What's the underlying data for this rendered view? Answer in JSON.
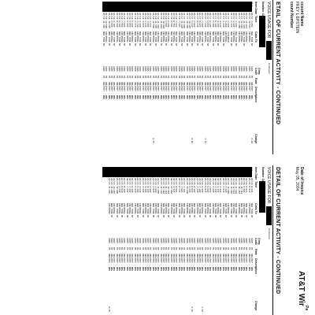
{
  "header": {
    "account_name_label": "ccount Name",
    "account_name_value": "FREY L EPSTEIN",
    "account_number_label": "count Number",
    "invoice_date_label": "Date of Invoice",
    "invoice_date_value": "May 05, 2004",
    "brand": "AT&T Wir",
    "page_label": "Pa"
  },
  "sections": [
    {
      "title": "ETAIL OF CURRENT ACTIVITY - CONTINUED",
      "subtitle": "VOICE USAGE FOR",
      "continued": "Continued",
      "columns": [
        "Number Called",
        "Item Date",
        "Time",
        "Calls To",
        "Chrg Code",
        "Rate",
        "Description",
        "Charge"
      ]
    },
    {
      "title": "DETAIL OF CURRENT ACTIVITY - CONTINUED",
      "subtitle": "VOICE USAGE FOR",
      "continued": "Continued",
      "columns": [
        "Number Called",
        "Item Date",
        "Time",
        "Calls To",
        "Chrg Code",
        "Rate",
        "Description",
        "Charge"
      ]
    }
  ],
  "rows_left": [
    [
      "05/1",
      "04/17 9:25A",
      "NEW YORK NY",
      "1085",
      "PK",
      "UNLIMIT - NNN",
      "2.00"
    ],
    [
      "05/1",
      "04/17 10:51A",
      "INCOMING",
      "1085",
      "PK",
      "UNLIMIT - NNN",
      ""
    ],
    [
      "05/1",
      "04/17 11:07A",
      "INCOMING",
      "1085",
      "PK",
      "UNLIMIT - NNN",
      ""
    ],
    [
      "05/1",
      "04/17 11:42A",
      "NEW YORK NY",
      "1085",
      "PK",
      "UNLIMIT - NNN",
      ""
    ],
    [
      "05/1",
      "04/17 12:02P",
      "INCOMING",
      "1085",
      "PK",
      "UNLIMIT - NNN",
      ""
    ],
    [
      "05/1",
      "04/17 12:45P",
      "INCOMING",
      "1085",
      "PK",
      "UNLIMIT - NNN",
      ""
    ],
    [
      "05/1",
      "04/17 1:03P",
      "NEW YORK NY",
      "1085",
      "PK",
      "UNLIMIT - NNN",
      ""
    ],
    [
      "05/1",
      "04/17 1:30P",
      "INCOMING",
      "1085",
      "PK",
      "UNLIMIT - NNN",
      ""
    ],
    [
      "05/1",
      "04/17 2:12P",
      "NEW YORK NY",
      "1085",
      "PK",
      "UNLIMIT - NNN",
      ""
    ],
    [
      "05/1",
      "04/17 2:40P",
      "VOICEMAIL",
      "1085",
      "PK",
      "UNLIMIT - NNN",
      ""
    ],
    [
      "05/1",
      "04/17 3:05P",
      "INCOMING",
      "1085",
      "PK",
      "UNLIMIT - NNN",
      ""
    ],
    [
      "05/1",
      "04/17 3:33P",
      "NEW YORK NY",
      "1085",
      "PK",
      "UNLIMIT - NNN",
      ""
    ],
    [
      "05/1",
      "04/17 4:01P",
      "INCOMING",
      "1085",
      "PK",
      "UNLIMIT - NNN",
      ""
    ],
    [
      "05/1",
      "04/17 4:26P",
      "NEW YORK NY",
      "1085",
      "PK",
      "UNLIMIT - NNN",
      ""
    ],
    [
      "05/1",
      "04/17 5:10P",
      "INCOMING",
      "1085",
      "PK",
      "UNLIMIT - NNN",
      ""
    ],
    [
      "05/1",
      "04/17 5:48P",
      "NEW YORK NY",
      "1085",
      "PK",
      "UNLIMIT - NNN",
      ""
    ],
    [
      "05/1",
      "04/17 6:20P",
      "INCOMING",
      "1085",
      "PK",
      "UNLIMIT - NNN",
      ""
    ],
    [
      "05/1",
      "04/17 6:55P",
      "NEW YORK NY",
      "1085",
      "PK",
      "UNLIMIT - NNN",
      ""
    ],
    [
      "05/1",
      "04/17 7:14P",
      "INCOMING",
      "1085",
      "PK",
      "UNLIMIT - NNN",
      "1.25"
    ],
    [
      "05/1",
      "04/17 7:40P",
      "NEW YORK NY",
      "1085",
      "PK",
      "UNLIMIT - NNN",
      ""
    ],
    [
      "05/1",
      "04/17 8:02P",
      "INCOMING",
      "1085",
      "PK",
      "UNLIMIT - NNN",
      ""
    ],
    [
      "05/1",
      "04/17 8:31P",
      "NEW YORK NY",
      "1085",
      "PK",
      "UNLIMIT - NNN",
      ""
    ],
    [
      "05/1",
      "04/17 9:09P",
      "INCOMING",
      "1085",
      "PK",
      "UNLIMIT - NNN",
      ""
    ],
    [
      "05/1",
      "04/17 9:44P",
      "NEW YORK NY",
      "1085",
      "PK",
      "UNLIMIT - NNN",
      "0.25"
    ],
    [
      "05/1",
      "04/17 10:12P",
      "INCOMING",
      "1085",
      "PK",
      "UNLIMIT - NNN",
      ""
    ],
    [
      "05/1",
      "04/17 10:40P",
      "NEW YORK NY",
      "1085",
      "PK",
      "UNLIMIT - NNN",
      ""
    ],
    [
      "05/1",
      "04/17 11:05P",
      "INCOMING",
      "1085",
      "PK",
      "UNLIMIT - NNN",
      ""
    ],
    [
      "05/1",
      "04/17 11:30P",
      "NEW YORK NY",
      "1085",
      "PK",
      "UNLIMIT - NNN",
      ""
    ],
    [
      "05/1",
      "04/18 7:10A",
      "INCOMING",
      "1085",
      "PK",
      "UNLIMIT - NNN",
      ""
    ],
    [
      "05/1",
      "04/18 7:42A",
      "NEW YORK NY",
      "1085",
      "PK",
      "UNLIMIT - NNN",
      ""
    ],
    [
      "05/1",
      "04/18 8:15A",
      "INCOMING",
      "1085",
      "PK",
      "UNLIMIT - NNN",
      ""
    ],
    [
      "05/1",
      "04/18 8:50A",
      "NEW YORK NY",
      "1085",
      "PK",
      "UNLIMIT - NNN",
      ""
    ],
    [
      "05/1",
      "04/18 9:20A",
      "INCOMING",
      "1085",
      "PK",
      "UNLIMIT - NNN",
      ""
    ],
    [
      "05/1",
      "04/18 9:58A",
      "NEW YORK NY",
      "1085",
      "PK",
      "UNLIMIT - NNN",
      ""
    ],
    [
      "05/1",
      "04/18 10:30A",
      "INCOMING",
      "1085",
      "PK",
      "UNLIMIT - NNN",
      ""
    ],
    [
      "05/1",
      "04/18 11:02A",
      "NEW YORK NY",
      "1085",
      "PK",
      "UNLIMIT - NNN",
      ""
    ],
    [
      "05/1",
      "04/18 11:40A",
      "INCOMING",
      "1085",
      "PK",
      "UNLIMIT - NNN",
      ""
    ],
    [
      "05/1",
      "04/18 12:15P",
      "NEW YORK NY",
      "1085",
      "PK",
      "UNLIMIT - NNN",
      ""
    ],
    [
      "05/1",
      "04/18 12:50P",
      "INCOMING",
      "1085",
      "PK",
      "UNLIMIT - NNN",
      "0.75"
    ],
    [
      "05/1",
      "04/18 1:22P",
      "NEW YORK NY",
      "1085",
      "PK",
      "UNLIMIT - NNN",
      ""
    ],
    [
      "05/1",
      "04/18 1:58P",
      "INCOMING",
      "1085",
      "PK",
      "UNLIMIT - NNN",
      ""
    ],
    [
      "05/1",
      "04/18 2:31P",
      "NEW YORK NY",
      "1085",
      "PK",
      "UNLIMIT - NNN",
      ""
    ],
    [
      "05/1",
      "04/18 3:02P",
      "INCOMING",
      "1085",
      "PK",
      "UNLIMIT - NNN",
      ""
    ],
    [
      "05/1",
      "04/18 3:40P",
      "NEW YORK NY",
      "1085",
      "PK",
      "UNLIMIT - NNN",
      ""
    ],
    [
      "05/1",
      "04/18 4:11P",
      "INCOMING",
      "1085",
      "PK",
      "UNLIMIT - NNN",
      ""
    ],
    [
      "05/1",
      "04/18 4:47P",
      "NEW YORK NY",
      "1085",
      "PK",
      "UNLIMIT - NNN",
      ""
    ],
    [
      "05/1",
      "04/18 5:20P",
      "INCOMING",
      "1085",
      "PK",
      "UNLIMIT - NNN",
      ""
    ],
    [
      "05/1",
      "04/18 5:55P",
      "NEW YORK NY",
      "1085",
      "PK",
      "UNLIMIT - NNN",
      ""
    ],
    [
      "05/1",
      "04/18 6:28P",
      "INCOMING",
      "1085",
      "PK",
      "UNLIMIT - NNN",
      ""
    ],
    [
      "05/1",
      "04/18 7:02P",
      "NEW YORK NY",
      "1085",
      "PK",
      "UNLIMIT - NNN",
      ""
    ],
    [
      "05/1",
      "04/18 7:35P",
      "INCOMING",
      "1085",
      "PK",
      "UNLIMIT - NNN",
      ""
    ],
    [
      "05/1",
      "04/18 8:10P",
      "NEW YORK NY",
      "1085",
      "PK",
      "UNLIMIT - NNN",
      ""
    ],
    [
      "05/1",
      "04/18 8:44P",
      "INCOMING",
      "1085",
      "PK",
      "UNLIMIT - NNN",
      ""
    ],
    [
      "05/1",
      "04/18 9:18P",
      "NEW YORK NY",
      "1085",
      "PK",
      "UNLIMIT - NNN",
      ""
    ],
    [
      "05/1",
      "04/18 9:50P",
      "INCOMING",
      "1085",
      "PK",
      "UNLIMIT - NNN",
      ""
    ],
    [
      "05/1",
      "04/18 10:22P",
      "NEW YORK NY",
      "1085",
      "PK",
      "UNLIMIT - NNN",
      ""
    ],
    [
      "05/1",
      "04/18 10:58P",
      "INCOMING",
      "1085",
      "PK",
      "UNLIMIT - NNN",
      ""
    ],
    [
      "05/1",
      "04/18 11:31P",
      "NEW YORK NY",
      "1085",
      "PK",
      "UNLIMIT - NNN",
      ""
    ]
  ],
  "rows_right": [
    [
      "4/2",
      "04/28 8:04A",
      "NEW YORK NY",
      "1085",
      "PK",
      "UNLIMIT - NNN",
      ""
    ],
    [
      "4/2",
      "04/28 8:31A",
      "INCOMING",
      "1085",
      "PK",
      "UNLIMIT - NNN",
      ""
    ],
    [
      "4/2",
      "04/28 9:02A",
      "NEW YORK NY",
      "1085",
      "PK",
      "UNLIMIT - NNN",
      ""
    ],
    [
      "4/2",
      "04/28 9:40A",
      "INCOMING",
      "1085",
      "PK",
      "UNLIMIT - NNN",
      ""
    ],
    [
      "4/2",
      "04/28 10:11A",
      "NEW YORK NY",
      "1085",
      "PK",
      "UNLIMIT - NNN",
      ""
    ],
    [
      "4/2",
      "04/28 10:45A",
      "INCOMING",
      "1085",
      "PK",
      "UNLIMIT - NNN",
      ""
    ],
    [
      "4/2",
      "04/28 11:20A",
      "NEW YORK NY",
      "1085",
      "PK",
      "UNLIMIT - NNN",
      ""
    ],
    [
      "4/2",
      "04/28 11:52A",
      "INCOMING",
      "1085",
      "PK",
      "UNLIMIT - NNN",
      ""
    ],
    [
      "4/2",
      "04/28 12:25P",
      "NEW YORK NY",
      "1085",
      "PK",
      "UNLIMIT - NNN",
      ""
    ],
    [
      "4/2",
      "04/28 12:58P",
      "INCOMING",
      "1085",
      "PK",
      "UNLIMIT - NNN",
      ""
    ],
    [
      "4/2",
      "04/28 1:30P",
      "NEW YORK NY",
      "1085",
      "PK",
      "UNLIMIT - NNN",
      ""
    ],
    [
      "4/2",
      "04/28 2:04P",
      "INCOMING",
      "1085",
      "PK",
      "UNLIMIT - NNN",
      ""
    ],
    [
      "4/2",
      "04/28 2:40P",
      "NEW YORK NY",
      "1085",
      "PK",
      "UNLIMIT - NNN",
      ""
    ],
    [
      "4/2",
      "04/28 3:12P",
      "INCOMING",
      "1085",
      "PK",
      "UNLIMIT - NNN",
      ""
    ],
    [
      "4/2",
      "04/28 3:46P",
      "NEW YORK NY",
      "1085",
      "PK",
      "UNLIMIT - NNN",
      ""
    ],
    [
      "4/2",
      "04/28 4:20P",
      "INCOMING",
      "1085",
      "PK",
      "UNLIMIT - NNN",
      ""
    ],
    [
      "4/2",
      "04/28 4:55P",
      "NEW YORK NY",
      "1085",
      "PK",
      "UNLIMIT - NNN",
      ""
    ],
    [
      "4/2",
      "04/28 5:28P",
      "INCOMING",
      "1085",
      "PK",
      "UNLIMIT - NNN",
      ""
    ],
    [
      "4/2",
      "04/28 6:02P",
      "NEW YORK NY",
      "1085",
      "PK",
      "UNLIMIT - NNN",
      ""
    ],
    [
      "4/2",
      "04/28 6:36P",
      "INCOMING",
      "1085",
      "PK",
      "UNLIMIT - NNN",
      "1.25"
    ],
    [
      "4/2",
      "04/28 7:10P",
      "NEW YORK NY",
      "1085",
      "PK",
      "UNLIMIT - NNN",
      ""
    ],
    [
      "4/2",
      "04/28 7:44P",
      "INCOMING",
      "1085",
      "PK",
      "UNLIMIT - NNN",
      ""
    ],
    [
      "4/2",
      "04/28 8:18P",
      "NEW YORK NY",
      "1085",
      "PK",
      "UNLIMIT - NNN",
      ""
    ],
    [
      "4/2",
      "04/28 8:52P",
      "INCOMING",
      "1085",
      "PK",
      "UNLIMIT - NNN",
      "0.25"
    ],
    [
      "4/2",
      "04/28 9:26P",
      "NEW YORK NY",
      "1085",
      "PK",
      "UNLIMIT - NNN",
      ""
    ],
    [
      "4/2",
      "04/28 10:00P",
      "INCOMING",
      "1085",
      "PK",
      "UNLIMIT - NNN",
      ""
    ],
    [
      "4/2",
      "04/29 7:15A",
      "NEW YORK NY",
      "1085",
      "PK",
      "UNLIMIT - NNN",
      ""
    ],
    [
      "4/2",
      "04/29 7:50A",
      "INCOMING",
      "1085",
      "PK",
      "UNLIMIT - NNN",
      ""
    ],
    [
      "4/2",
      "04/29 8:24A",
      "NEW YORK NY",
      "1085",
      "PK",
      "UNLIMIT - NNN",
      ""
    ],
    [
      "4/2",
      "04/29 8:58A",
      "INCOMING",
      "1085",
      "PK",
      "UNLIMIT - NNN",
      ""
    ],
    [
      "4/2",
      "04/29 9:32A",
      "NEW YORK NY",
      "1085",
      "PK",
      "UNLIMIT - NNN",
      ""
    ],
    [
      "4/2",
      "04/29 10:06A",
      "INCOMING",
      "1085",
      "PK",
      "UNLIMIT - NNN",
      ""
    ],
    [
      "4/2",
      "04/29 10:40A",
      "NEW YORK NY",
      "1085",
      "PK",
      "UNLIMIT - NNN",
      ""
    ],
    [
      "4/2",
      "04/29 11:14A",
      "INCOMING",
      "1085",
      "PK",
      "UNLIMIT - NNN",
      ""
    ],
    [
      "4/2",
      "04/29 11:48A",
      "NEW YORK NY",
      "1085",
      "PK",
      "UNLIMIT - NNN",
      ""
    ],
    [
      "4/2",
      "04/29 12:22P",
      "INCOMING",
      "1085",
      "PK",
      "UNLIMIT - NNN",
      ""
    ],
    [
      "4/2",
      "04/29 12:56P",
      "NEW YORK NY",
      "1085",
      "PK",
      "UNLIMIT - NNN",
      ""
    ],
    [
      "4/2",
      "04/29 1:30P",
      "INCOMING",
      "1085",
      "PK",
      "UNLIMIT - NNN",
      ""
    ],
    [
      "4/2",
      "04/29 2:04P",
      "NEW YORK NY",
      "1085",
      "PK",
      "UNLIMIT - NNN",
      ""
    ],
    [
      "4/2",
      "04/29 2:38P",
      "INCOMING",
      "1085",
      "PK",
      "UNLIMIT - NNN",
      ""
    ],
    [
      "4/2",
      "04/29 3:12P",
      "NEW YORK NY",
      "1085",
      "PK",
      "UNLIMIT - NNN",
      ""
    ],
    [
      "4/2",
      "04/29 3:46P",
      "INCOMING",
      "1085",
      "PK",
      "UNLIMIT - NNN",
      ""
    ],
    [
      "4/2",
      "04/29 4:20P",
      "NEW YORK NY",
      "1085",
      "PK",
      "UNLIMIT - NNN",
      ""
    ],
    [
      "4/2",
      "04/29 4:54P",
      "INCOMING",
      "1085",
      "PK",
      "UNLIMIT - NNN",
      ""
    ],
    [
      "4/2",
      "04/29 5:28P",
      "NEW YORK NY",
      "1085",
      "PK",
      "UNLIMIT - NNN",
      ""
    ],
    [
      "4/2",
      "04/29 6:02P",
      "INCOMING",
      "1085",
      "PK",
      "UNLIMIT - NNN",
      ""
    ],
    [
      "4/2",
      "04/29 6:36P",
      "NEW YORK NY",
      "1085",
      "PK",
      "UNLIMIT - NNN",
      ""
    ],
    [
      "4/2",
      "04/29 7:10P",
      "INCOMING",
      "1085",
      "PK",
      "UNLIMIT - NNN",
      ""
    ],
    [
      "4/2",
      "04/29 7:44P",
      "NEW YORK NY",
      "1085",
      "PK",
      "UNLIMIT - NNN",
      ""
    ],
    [
      "4/2",
      "04/29 8:18P",
      "INCOMING",
      "1085",
      "PK",
      "UNLIMIT - NNN",
      ""
    ],
    [
      "4/2",
      "04/29 8:52P",
      "NEW YORK NY",
      "1085",
      "PK",
      "UNLIMIT - NNN",
      ""
    ],
    [
      "4/2",
      "04/29 9:26P",
      "INCOMING",
      "1085",
      "PK",
      "UNLIMIT - NNN",
      ""
    ],
    [
      "4/2",
      "04/29 10:00P",
      "NEW YORK NY",
      "1085",
      "PK",
      "UNLIMIT - NNN",
      ""
    ],
    [
      "4/2",
      "04/29 10:34P",
      "INCOMING",
      "1085",
      "PK",
      "UNLIMIT - NNN",
      ""
    ],
    [
      "4/2",
      "04/29 11:08P",
      "NEW YORK NY",
      "1085",
      "PK",
      "UNLIMIT - NNN",
      ""
    ],
    [
      "4/2",
      "04/29 11:42P",
      "INCOMING",
      "1085",
      "PK",
      "UNLIMIT - NNN",
      "0.35"
    ]
  ],
  "colors": {
    "ink": "#111111",
    "redaction": "#000000",
    "paper": "#ffffff"
  }
}
